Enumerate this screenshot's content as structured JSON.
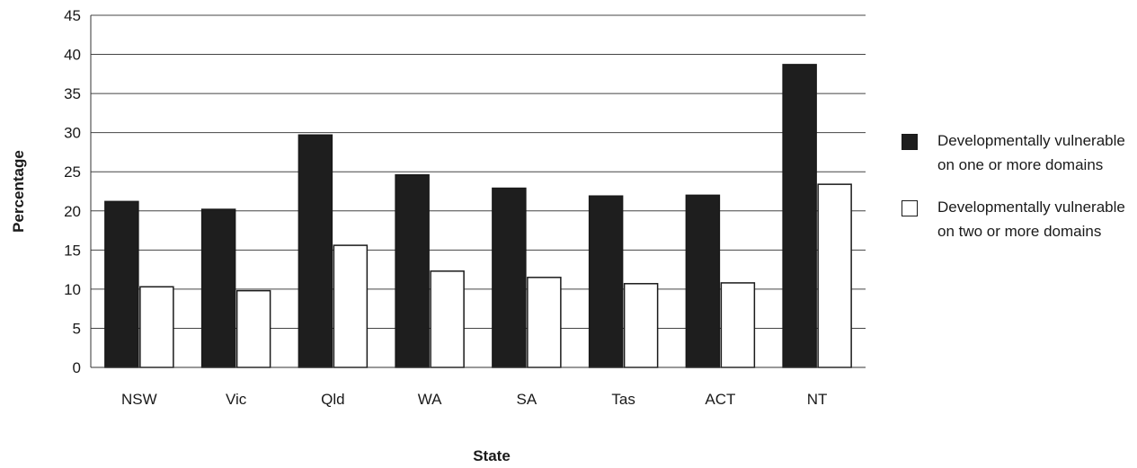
{
  "chart_data": {
    "type": "bar",
    "xlabel": "State",
    "ylabel": "Percentage",
    "categories": [
      "NSW",
      "Vic",
      "Qld",
      "WA",
      "SA",
      "Tas",
      "ACT",
      "NT"
    ],
    "series": [
      {
        "name": "Developmentally vulnerable on one or more domains",
        "color": "#1e1e1e",
        "values": [
          21.2,
          20.2,
          29.7,
          24.6,
          22.9,
          21.9,
          22.0,
          38.7
        ]
      },
      {
        "name": "Developmentally vulnerable on two or more domains",
        "color": "#ffffff",
        "values": [
          10.3,
          9.8,
          15.6,
          12.3,
          11.5,
          10.7,
          10.8,
          23.4
        ]
      }
    ],
    "ylim": [
      0,
      45
    ],
    "yticks": [
      0,
      5,
      10,
      15,
      20,
      25,
      30,
      35,
      40,
      45
    ],
    "grid": true,
    "legend_position": "right"
  }
}
